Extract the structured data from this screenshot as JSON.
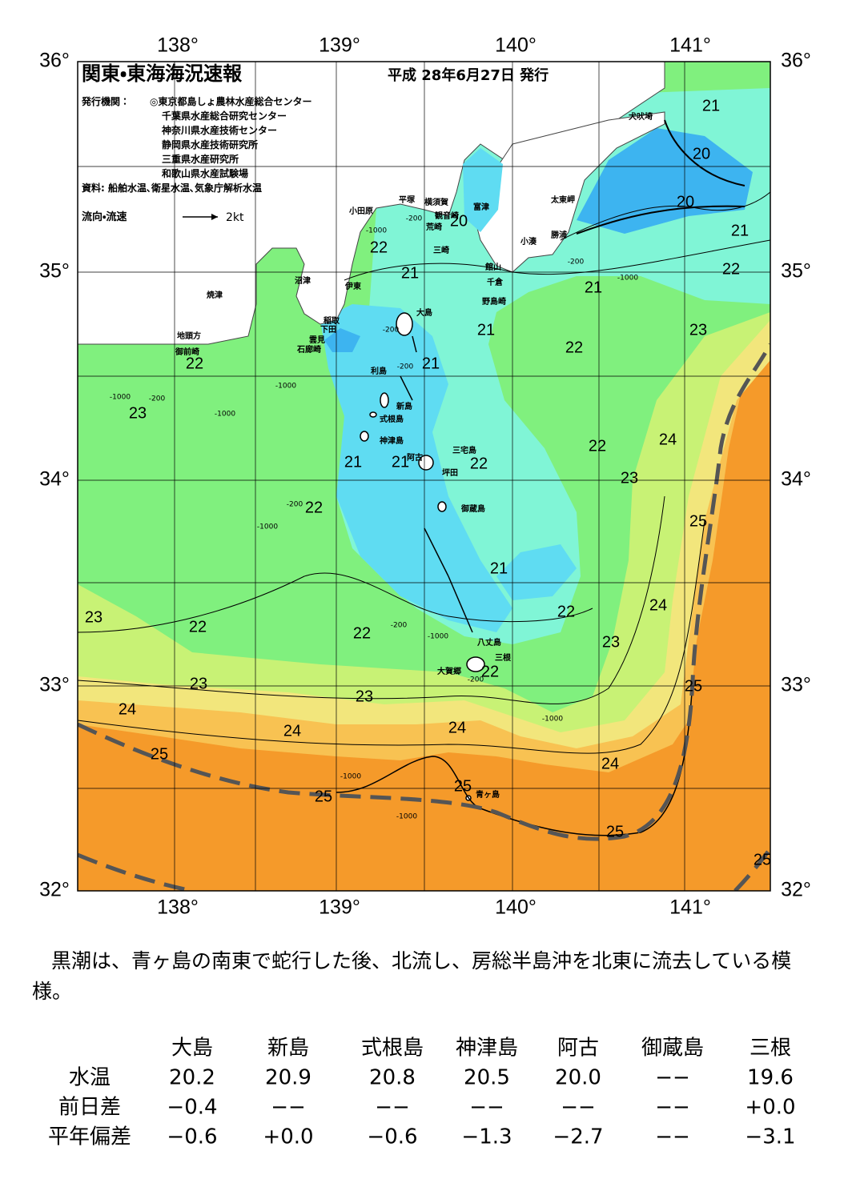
{
  "header": {
    "title": "関東・東海海況速報",
    "date": "平成 28年6月27日 発行",
    "issuers_label": "発行機関：",
    "issuers": [
      "◎東京都島しょ農林水産総合センター",
      "千葉県水産総合研究センター",
      "神奈川県水産技術センター",
      "静岡県水産技術研究所",
      "三重県水産研究所",
      "和歌山県水産試験場"
    ],
    "sources": "資料: 船舶水温､衛星水温､気象庁解析水温",
    "flow_label": "流向・流速",
    "flow_unit": "2kt"
  },
  "map": {
    "lon_labels_top": [
      "138°",
      "139°",
      "140°",
      "141°"
    ],
    "lon_labels_bottom": [
      "138°",
      "139°",
      "140°",
      "141°"
    ],
    "lat_labels_left": [
      "36°",
      "35°",
      "34°",
      "33°",
      "32°"
    ],
    "lat_labels_right": [
      "36°",
      "35°",
      "34°",
      "33°",
      "32°"
    ],
    "isotherm_labels": [
      "21",
      "20",
      "20",
      "21",
      "22",
      "21",
      "20",
      "22",
      "21",
      "21",
      "22",
      "23",
      "22",
      "21",
      "23",
      "22",
      "24",
      "21",
      "21",
      "22",
      "23",
      "22",
      "25",
      "21",
      "23",
      "22",
      "22",
      "22",
      "24",
      "23",
      "22",
      "23",
      "25",
      "24",
      "23",
      "24",
      "24",
      "25",
      "24",
      "25",
      "25",
      "25",
      "25"
    ],
    "place_names": [
      "犬吠埼",
      "太東岬",
      "勝浦",
      "小湊",
      "富津",
      "横須賀",
      "観音崎",
      "平塚",
      "小田原",
      "荒崎",
      "三崎",
      "館山",
      "千倉",
      "野島崎",
      "沼津",
      "伊東",
      "焼津",
      "大島",
      "稲取",
      "下田",
      "地頭方",
      "雲見",
      "御前崎",
      "石廊崎",
      "利島",
      "新島",
      "式根島",
      "神津島",
      "三宅島",
      "阿古",
      "坪田",
      "御蔵島",
      "八丈島",
      "三根",
      "大賀郷",
      "青ヶ島"
    ],
    "depth_labels": [
      "-200",
      "-1000",
      "-200",
      "-200",
      "-1000",
      "-200",
      "-1000",
      "-1000",
      "-200",
      "-1000",
      "-1000",
      "-200",
      "-1000",
      "-200",
      "-200",
      "-1000",
      "-1000",
      "-1000"
    ]
  },
  "summary": "黒潮は、青ヶ島の南東で蛇行した後、北流し、房総半島沖を北東に流去している模様。",
  "table": {
    "columns": [
      "大島",
      "新島",
      "式根島",
      "神津島",
      "阿古",
      "御蔵島",
      "三根"
    ],
    "rows": [
      {
        "label": "水温",
        "cells": [
          "20.2",
          "20.9",
          "20.8",
          "20.5",
          "20.0",
          "−−",
          "19.6"
        ]
      },
      {
        "label": "前日差",
        "cells": [
          "−0.4",
          "−−",
          "−−",
          "−−",
          "−−",
          "−−",
          "+0.0"
        ]
      },
      {
        "label": "平年偏差",
        "cells": [
          "−0.6",
          "+0.0",
          "−0.6",
          "−1.3",
          "−2.7",
          "−−",
          "−3.1"
        ]
      }
    ]
  }
}
